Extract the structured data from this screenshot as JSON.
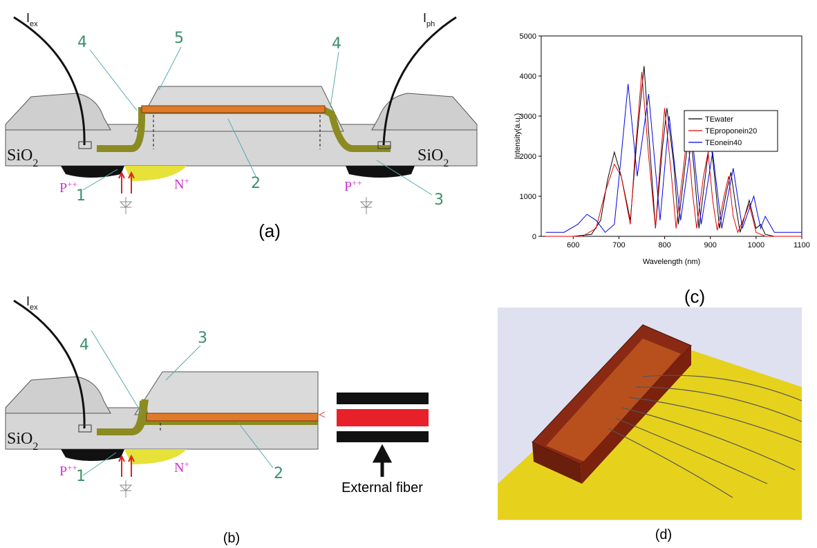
{
  "panel_a": {
    "label": "(a)",
    "current_left": {
      "main": "I",
      "sub": "ex"
    },
    "current_right": {
      "main": "I",
      "sub": "ph"
    },
    "callouts": [
      "4",
      "5",
      "4",
      "1",
      "2",
      "3"
    ],
    "oxide_left": {
      "main": "SiO",
      "sub": "2"
    },
    "oxide_right": {
      "main": "SiO",
      "sub": "2"
    },
    "p_left": {
      "main": "P",
      "sup": "++"
    },
    "p_right": {
      "main": "P",
      "sup": "++"
    },
    "n": {
      "main": "N",
      "sup": "+"
    }
  },
  "panel_b": {
    "label": "(b)",
    "current_left": {
      "main": "I",
      "sub": "ex"
    },
    "callouts": [
      "4",
      "3",
      "1",
      "2"
    ],
    "oxide_left": {
      "main": "SiO",
      "sub": "2"
    },
    "p_left": {
      "main": "P",
      "sup": "++"
    },
    "n": {
      "main": "N",
      "sup": "+"
    },
    "fiber_label": "External fiber"
  },
  "panel_c_label": "(c)",
  "panel_d_label": "(d)",
  "chart_data": {
    "type": "line",
    "xlabel": "Wavelength (nm)",
    "ylabel": "Intensity(a.u.)",
    "xlim": [
      530,
      1100
    ],
    "ylim": [
      0,
      5000
    ],
    "xticks": [
      600,
      700,
      800,
      900,
      1000,
      1100
    ],
    "yticks": [
      0,
      1000,
      2000,
      3000,
      4000,
      5000
    ],
    "legend": "upper right",
    "series": [
      {
        "name": "TEwater",
        "color": "#000000",
        "x": [
          540,
          600,
          640,
          660,
          675,
          690,
          705,
          725,
          740,
          755,
          765,
          780,
          795,
          805,
          820,
          830,
          845,
          855,
          865,
          875,
          890,
          900,
          910,
          920,
          935,
          945,
          955,
          965,
          975,
          985,
          1000,
          1010,
          1020,
          1040,
          1100
        ],
        "values": [
          0,
          0,
          50,
          400,
          1400,
          2100,
          1500,
          400,
          2500,
          4250,
          2600,
          200,
          2200,
          3200,
          1800,
          300,
          1800,
          2750,
          1600,
          200,
          1600,
          2500,
          1400,
          200,
          1100,
          1600,
          800,
          100,
          500,
          900,
          200,
          300,
          50,
          0,
          0
        ]
      },
      {
        "name": "TEproponein20",
        "color": "#e00000",
        "x": [
          540,
          620,
          650,
          670,
          690,
          705,
          725,
          735,
          750,
          765,
          780,
          790,
          800,
          815,
          825,
          840,
          850,
          860,
          870,
          885,
          895,
          905,
          915,
          930,
          940,
          950,
          960,
          975,
          985,
          1000,
          1020,
          1100
        ],
        "values": [
          0,
          0,
          200,
          1100,
          1800,
          1500,
          300,
          2000,
          4100,
          2000,
          200,
          1800,
          3200,
          1500,
          200,
          1600,
          2600,
          1200,
          200,
          1500,
          2100,
          900,
          150,
          1000,
          1500,
          500,
          100,
          500,
          800,
          100,
          0,
          0
        ]
      },
      {
        "name": "TEonein40",
        "color": "#0000e6",
        "x": [
          540,
          580,
          610,
          630,
          650,
          670,
          690,
          705,
          720,
          740,
          765,
          790,
          810,
          835,
          860,
          880,
          905,
          925,
          950,
          970,
          995,
          1010,
          1020,
          1040,
          1060,
          1100
        ],
        "values": [
          100,
          100,
          300,
          550,
          400,
          100,
          300,
          2000,
          3800,
          1500,
          3550,
          400,
          3000,
          400,
          2500,
          300,
          2100,
          200,
          1700,
          200,
          1000,
          200,
          500,
          100,
          100,
          100
        ]
      }
    ]
  }
}
